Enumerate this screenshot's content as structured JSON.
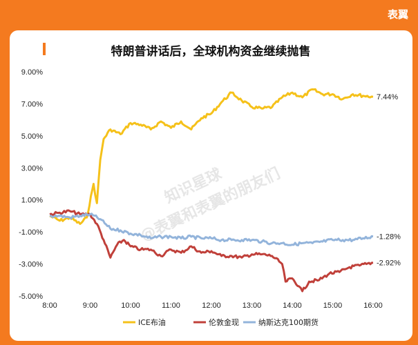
{
  "brand": "表翼",
  "watermark": [
    "知识星球",
    "@表翼和表翼的朋友们"
  ],
  "chart_data": {
    "type": "line",
    "title": "特朗普讲话后，全球机构资金继续抛售",
    "xlabel": "",
    "ylabel": "",
    "x_ticks": [
      "8:00",
      "9:00",
      "10:00",
      "11:00",
      "12:00",
      "13:00",
      "14:00",
      "15:00",
      "16:00"
    ],
    "y_ticks": [
      "9.00%",
      "7.00%",
      "5.00%",
      "3.00%",
      "1.00%",
      "-1.00%",
      "-3.00%",
      "-5.00%"
    ],
    "xlim": [
      "8:00",
      "16:00"
    ],
    "ylim": [
      -5.0,
      9.0
    ],
    "legend_position": "bottom",
    "grid": false,
    "series": [
      {
        "name": "ICE布油",
        "color": "#f5c11a",
        "end_label": "7.44%",
        "points": [
          [
            "8:00",
            0.0
          ],
          [
            "8:15",
            -0.3
          ],
          [
            "8:30",
            -0.1
          ],
          [
            "8:45",
            -0.5
          ],
          [
            "8:55",
            -0.1
          ],
          [
            "9:05",
            2.0
          ],
          [
            "9:10",
            0.8
          ],
          [
            "9:15",
            3.5
          ],
          [
            "9:20",
            4.8
          ],
          [
            "9:30",
            5.4
          ],
          [
            "9:45",
            5.1
          ],
          [
            "10:00",
            5.8
          ],
          [
            "10:15",
            5.7
          ],
          [
            "10:30",
            5.4
          ],
          [
            "10:45",
            5.9
          ],
          [
            "11:00",
            5.5
          ],
          [
            "11:15",
            5.9
          ],
          [
            "11:30",
            5.4
          ],
          [
            "11:45",
            6.1
          ],
          [
            "12:00",
            6.4
          ],
          [
            "12:15",
            7.1
          ],
          [
            "12:30",
            7.7
          ],
          [
            "12:45",
            7.2
          ],
          [
            "13:00",
            6.8
          ],
          [
            "13:15",
            6.7
          ],
          [
            "13:30",
            6.8
          ],
          [
            "13:45",
            7.4
          ],
          [
            "14:00",
            7.7
          ],
          [
            "14:15",
            7.4
          ],
          [
            "14:30",
            7.9
          ],
          [
            "14:45",
            7.6
          ],
          [
            "15:00",
            7.6
          ],
          [
            "15:15",
            7.3
          ],
          [
            "15:30",
            7.6
          ],
          [
            "15:45",
            7.5
          ],
          [
            "16:00",
            7.44
          ]
        ]
      },
      {
        "name": "伦敦金现",
        "color": "#c0403a",
        "end_label": "-2.92%",
        "points": [
          [
            "8:00",
            0.1
          ],
          [
            "8:15",
            0.2
          ],
          [
            "8:30",
            0.3
          ],
          [
            "8:45",
            0.1
          ],
          [
            "9:00",
            0.1
          ],
          [
            "9:10",
            -0.5
          ],
          [
            "9:20",
            -1.5
          ],
          [
            "9:30",
            -2.6
          ],
          [
            "9:40",
            -1.8
          ],
          [
            "9:50",
            -1.5
          ],
          [
            "10:00",
            -1.9
          ],
          [
            "10:15",
            -2.1
          ],
          [
            "10:30",
            -2.1
          ],
          [
            "10:45",
            -2.5
          ],
          [
            "11:00",
            -2.1
          ],
          [
            "11:15",
            -2.3
          ],
          [
            "11:30",
            -1.9
          ],
          [
            "11:45",
            -2.3
          ],
          [
            "12:00",
            -2.2
          ],
          [
            "12:15",
            -2.5
          ],
          [
            "12:30",
            -2.5
          ],
          [
            "12:45",
            -2.6
          ],
          [
            "13:00",
            -2.4
          ],
          [
            "13:15",
            -2.4
          ],
          [
            "13:30",
            -2.5
          ],
          [
            "13:45",
            -3.0
          ],
          [
            "13:50",
            -4.1
          ],
          [
            "14:00",
            -3.9
          ],
          [
            "14:10",
            -4.4
          ],
          [
            "14:15",
            -4.7
          ],
          [
            "14:25",
            -4.1
          ],
          [
            "14:40",
            -4.0
          ],
          [
            "14:55",
            -3.6
          ],
          [
            "15:10",
            -3.5
          ],
          [
            "15:25",
            -3.2
          ],
          [
            "15:40",
            -3.1
          ],
          [
            "15:50",
            -3.0
          ],
          [
            "16:00",
            -2.92
          ]
        ]
      },
      {
        "name": "纳斯达克100期货",
        "color": "#93b4db",
        "end_label": "-1.28%",
        "points": [
          [
            "8:00",
            0.0
          ],
          [
            "8:15",
            0.0
          ],
          [
            "8:30",
            -0.1
          ],
          [
            "8:45",
            0.0
          ],
          [
            "9:00",
            0.1
          ],
          [
            "9:15",
            -0.2
          ],
          [
            "9:30",
            -0.8
          ],
          [
            "9:45",
            -0.9
          ],
          [
            "10:00",
            -1.1
          ],
          [
            "10:15",
            -1.2
          ],
          [
            "10:30",
            -1.4
          ],
          [
            "10:45",
            -1.3
          ],
          [
            "11:00",
            -1.3
          ],
          [
            "11:15",
            -1.4
          ],
          [
            "11:30",
            -1.3
          ],
          [
            "11:45",
            -1.4
          ],
          [
            "12:00",
            -1.4
          ],
          [
            "12:15",
            -1.5
          ],
          [
            "12:30",
            -1.5
          ],
          [
            "12:45",
            -1.5
          ],
          [
            "13:00",
            -1.5
          ],
          [
            "13:15",
            -1.6
          ],
          [
            "13:30",
            -1.7
          ],
          [
            "13:45",
            -1.7
          ],
          [
            "14:00",
            -1.8
          ],
          [
            "14:15",
            -1.7
          ],
          [
            "14:30",
            -1.7
          ],
          [
            "14:45",
            -1.6
          ],
          [
            "15:00",
            -1.5
          ],
          [
            "15:15",
            -1.5
          ],
          [
            "15:30",
            -1.5
          ],
          [
            "15:45",
            -1.4
          ],
          [
            "16:00",
            -1.28
          ]
        ]
      }
    ]
  }
}
